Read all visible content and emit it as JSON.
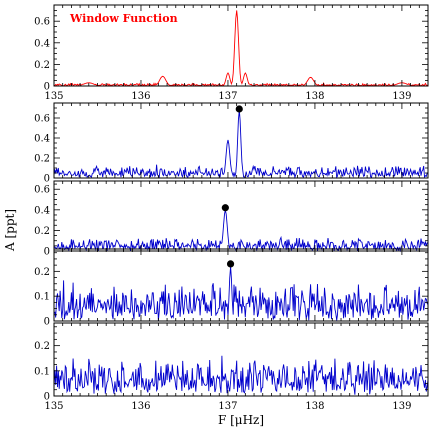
{
  "chart_data": {
    "type": "line",
    "xlabel": "F [μHz]",
    "ylabel": "A [ppt]",
    "xlim": [
      135,
      139.3
    ],
    "x_ticks": [
      "135",
      "136",
      "137",
      "138",
      "139"
    ],
    "colors": {
      "window": "#ff0000",
      "spectrum": "#0000cc",
      "marker": "#000000"
    },
    "panels": [
      {
        "name": "window",
        "annotation": "Window Function",
        "color": "#ff0000",
        "ylim": [
          0,
          0.75
        ],
        "y_ticks": [
          0,
          0.2,
          0.4,
          0.6
        ],
        "y_tick_labels": [
          "0",
          "0.2",
          "0.4",
          "0.6"
        ],
        "noise_level": 0.02,
        "peaks": [
          {
            "x": 137.1,
            "y": 0.7,
            "width": 0.03
          },
          {
            "x": 137.0,
            "y": 0.12,
            "width": 0.03
          },
          {
            "x": 137.2,
            "y": 0.12,
            "width": 0.03
          },
          {
            "x": 136.25,
            "y": 0.09,
            "width": 0.05
          },
          {
            "x": 137.95,
            "y": 0.08,
            "width": 0.05
          },
          {
            "x": 139.0,
            "y": 0.03,
            "width": 0.08
          },
          {
            "x": 135.4,
            "y": 0.03,
            "width": 0.08
          }
        ]
      },
      {
        "name": "prewhitening-step-1",
        "color": "#0000cc",
        "ylim": [
          0,
          0.75
        ],
        "y_ticks": [
          0,
          0.2,
          0.4,
          0.6
        ],
        "y_tick_labels": [
          "0",
          "0.2",
          "0.4",
          "0.6"
        ],
        "noise_level": 0.11,
        "peaks": [
          {
            "x": 137.13,
            "y": 0.68,
            "width": 0.025
          },
          {
            "x": 137.0,
            "y": 0.38,
            "width": 0.03
          }
        ],
        "marker": {
          "x": 137.13,
          "y": 0.69
        }
      },
      {
        "name": "prewhitening-step-2",
        "color": "#0000cc",
        "ylim": [
          0,
          0.68
        ],
        "y_ticks": [
          0,
          0.2,
          0.4,
          0.6
        ],
        "y_tick_labels": [
          "0",
          "0.2",
          "0.4",
          "0.6"
        ],
        "noise_level": 0.11,
        "peaks": [
          {
            "x": 136.97,
            "y": 0.4,
            "width": 0.03
          }
        ],
        "marker": {
          "x": 136.97,
          "y": 0.42
        }
      },
      {
        "name": "prewhitening-step-3",
        "color": "#0000cc",
        "ylim": [
          0,
          0.29
        ],
        "y_ticks": [
          0,
          0.1,
          0.2
        ],
        "y_tick_labels": [
          "0",
          "0.1",
          "0.2"
        ],
        "noise_level": 0.13,
        "peaks": [
          {
            "x": 137.03,
            "y": 0.22,
            "width": 0.02
          }
        ],
        "marker": {
          "x": 137.03,
          "y": 0.23
        }
      },
      {
        "name": "residual",
        "color": "#0000cc",
        "ylim": [
          0,
          0.29
        ],
        "y_ticks": [
          0,
          0.1,
          0.2
        ],
        "y_tick_labels": [
          "0",
          "0.1",
          "0.2"
        ],
        "noise_level": 0.13,
        "peaks": []
      }
    ]
  }
}
